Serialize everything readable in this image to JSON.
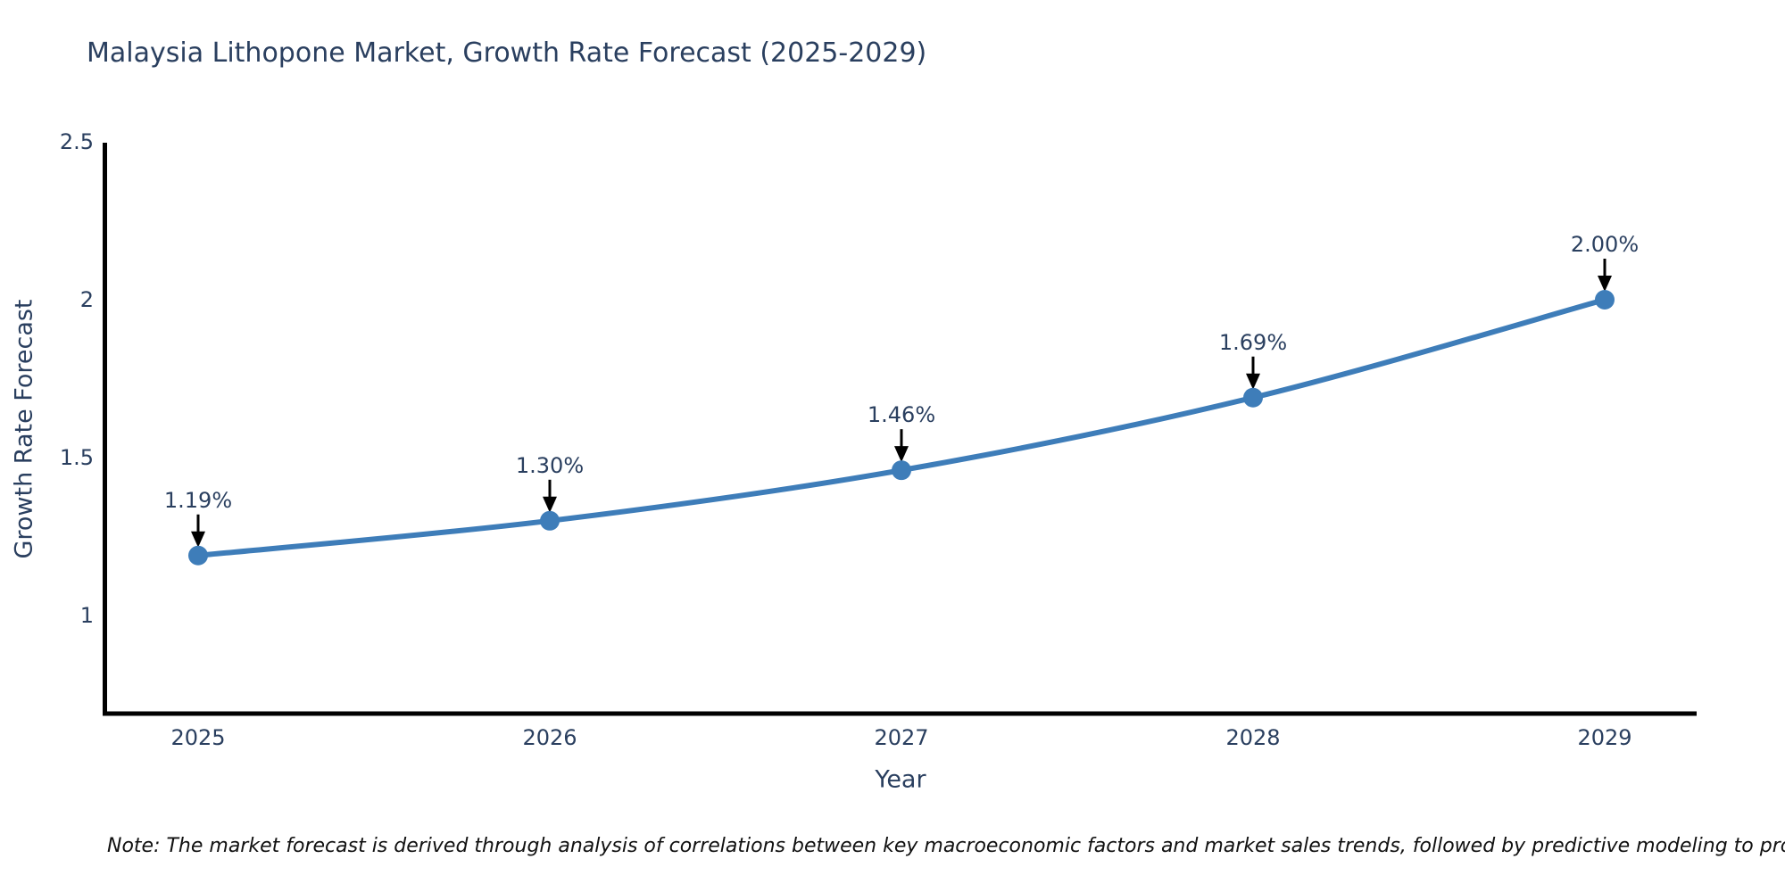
{
  "note": {
    "text": "Note: The market forecast is derived through analysis of correlations between key macroeconomic factors and market sales trends, followed by predictive modeling to project future sales"
  },
  "colors": {
    "background": "#ffffff",
    "line": "#3e7db9",
    "marker": "#3e7db9",
    "axis": "#000000",
    "arrow": "#000000",
    "text": "#2a3f5f",
    "note_text": "#111111"
  },
  "chart_data": {
    "type": "line",
    "title": "Malaysia Lithopone Market, Growth Rate Forecast (2025-2029)",
    "xlabel": "Year",
    "ylabel": "Growth Rate Forecast",
    "categories": [
      2025,
      2026,
      2027,
      2028,
      2029
    ],
    "series": [
      {
        "name": "Growth Rate Forecast",
        "values": [
          1.19,
          1.3,
          1.46,
          1.69,
          2.0
        ]
      }
    ],
    "point_labels": [
      "1.19%",
      "1.30%",
      "1.46%",
      "1.69%",
      "2.00%"
    ],
    "yticks": [
      1,
      1.5,
      2,
      2.5
    ],
    "ylim": [
      0.68,
      2.51
    ],
    "grid": false,
    "legend": "none",
    "line_shape": "spline",
    "marker": "circle",
    "annotation_style": "black-down-arrow-above-point"
  }
}
